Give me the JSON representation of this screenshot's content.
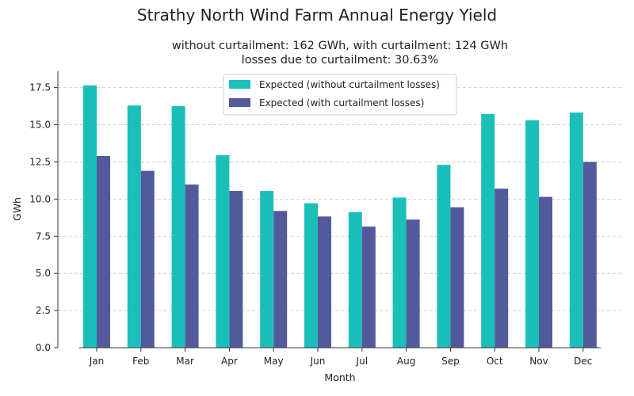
{
  "chart_data": {
    "type": "bar",
    "title": "Strathy North Wind Farm Annual Energy Yield",
    "subtitle_lines": [
      "without curtailment: 162 GWh, with curtailment: 124 GWh",
      "losses due to curtailment: 30.63%"
    ],
    "xlabel": "Month",
    "ylabel": "GWh",
    "categories": [
      "Jan",
      "Feb",
      "Mar",
      "Apr",
      "May",
      "Jun",
      "Jul",
      "Aug",
      "Sep",
      "Oct",
      "Nov",
      "Dec"
    ],
    "series": [
      {
        "name": "Expected (without curtailment losses)",
        "color": "#1abfb9",
        "values": [
          17.65,
          16.3,
          16.25,
          12.95,
          10.55,
          9.72,
          9.12,
          10.1,
          12.3,
          15.72,
          15.3,
          15.82
        ]
      },
      {
        "name": "Expected (with curtailment losses)",
        "color": "#535a9b",
        "values": [
          12.9,
          11.9,
          10.98,
          10.55,
          9.2,
          8.83,
          8.15,
          8.62,
          9.45,
          10.7,
          10.15,
          12.5
        ]
      }
    ],
    "ylim": [
      0,
      18.6
    ],
    "yticks": [
      "0.0",
      "2.5",
      "5.0",
      "7.5",
      "10.0",
      "12.5",
      "15.0",
      "17.5"
    ],
    "grid": "horizontal-dashed",
    "legend_position": "top-center"
  }
}
